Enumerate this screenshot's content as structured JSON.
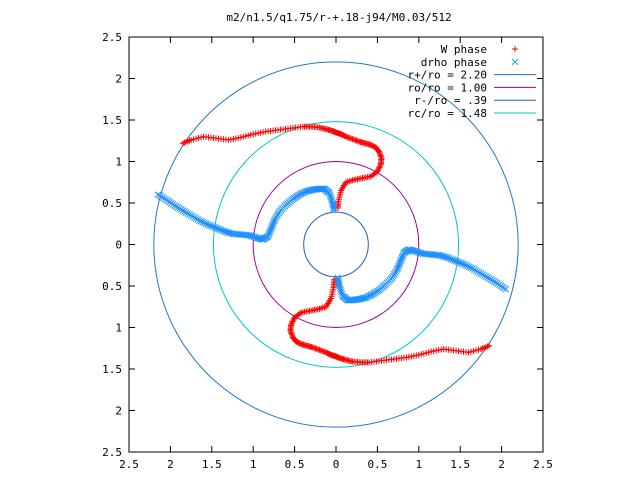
{
  "chart_data": {
    "type": "scatter",
    "title": "m2/n1.5/q1.75/r-+.18-j94/M0.03/512",
    "xlabel": "",
    "ylabel": "",
    "xlim": [
      -2.5,
      2.5
    ],
    "ylim": [
      -2.5,
      2.5
    ],
    "x_tick_labels": [
      "2.5",
      "2",
      "1.5",
      "1",
      "0.5",
      "0",
      "0.5",
      "1",
      "1.5",
      "2",
      "2.5"
    ],
    "y_tick_labels": [
      "2.5",
      "2",
      "1.5",
      "1",
      "0.5",
      "0",
      "0.5",
      "1",
      "1.5",
      "2",
      "2.5"
    ],
    "grid": false,
    "legend_position": "top-right",
    "series": [
      {
        "name": "W phase",
        "marker": "plus",
        "color": "#ff0000",
        "x": [
          -1.85,
          -1.75,
          -1.6,
          -1.45,
          -1.3,
          -1.15,
          -1.0,
          -0.85,
          -0.7,
          -0.55,
          -0.4,
          -0.3,
          -0.2,
          -0.12,
          -0.05,
          0.0,
          0.06,
          0.12,
          0.2,
          0.28,
          0.35,
          0.42,
          0.48,
          0.52,
          0.55,
          0.54,
          0.5,
          0.42,
          0.32,
          0.22,
          0.12,
          0.06,
          0.03,
          0.02,
          -0.02,
          -0.03,
          -0.06,
          -0.12,
          -0.22,
          -0.32,
          -0.42,
          -0.5,
          -0.54,
          -0.55,
          -0.52,
          -0.48,
          -0.42,
          -0.35,
          -0.28,
          -0.2,
          -0.12,
          -0.06,
          0.0,
          0.05,
          0.12,
          0.2,
          0.3,
          0.4,
          0.55,
          0.7,
          0.85,
          1.0,
          1.15,
          1.3,
          1.45,
          1.6,
          1.75,
          1.85
        ],
        "y": [
          1.22,
          1.26,
          1.3,
          1.28,
          1.26,
          1.29,
          1.33,
          1.36,
          1.38,
          1.4,
          1.42,
          1.42,
          1.41,
          1.39,
          1.37,
          1.35,
          1.33,
          1.3,
          1.27,
          1.24,
          1.22,
          1.2,
          1.17,
          1.12,
          1.04,
          0.96,
          0.88,
          0.82,
          0.8,
          0.78,
          0.75,
          0.65,
          0.52,
          0.42,
          -0.42,
          -0.52,
          -0.65,
          -0.75,
          -0.78,
          -0.8,
          -0.82,
          -0.88,
          -0.96,
          -1.04,
          -1.12,
          -1.17,
          -1.2,
          -1.22,
          -1.24,
          -1.27,
          -1.3,
          -1.33,
          -1.35,
          -1.37,
          -1.39,
          -1.41,
          -1.42,
          -1.42,
          -1.4,
          -1.38,
          -1.36,
          -1.33,
          -1.29,
          -1.26,
          -1.28,
          -1.3,
          -1.26,
          -1.22
        ]
      },
      {
        "name": "drho phase",
        "marker": "cross",
        "color": "#1e90ff",
        "x": [
          -2.15,
          -2.05,
          -1.95,
          -1.85,
          -1.75,
          -1.65,
          -1.55,
          -1.45,
          -1.35,
          -1.25,
          -1.15,
          -1.05,
          -0.95,
          -0.88,
          -0.82,
          -0.78,
          -0.74,
          -0.68,
          -0.6,
          -0.52,
          -0.44,
          -0.36,
          -0.28,
          -0.2,
          -0.14,
          -0.08,
          -0.04,
          -0.02,
          0.02,
          0.04,
          0.08,
          0.14,
          0.2,
          0.28,
          0.36,
          0.44,
          0.52,
          0.6,
          0.68,
          0.74,
          0.78,
          0.82,
          0.88,
          0.95,
          1.05,
          1.15,
          1.25,
          1.35,
          1.45,
          1.55,
          1.65,
          1.75,
          1.85,
          1.95,
          2.05
        ],
        "y": [
          0.6,
          0.54,
          0.47,
          0.41,
          0.35,
          0.29,
          0.24,
          0.2,
          0.16,
          0.13,
          0.12,
          0.11,
          0.08,
          0.06,
          0.1,
          0.2,
          0.3,
          0.4,
          0.48,
          0.55,
          0.6,
          0.64,
          0.66,
          0.67,
          0.67,
          0.62,
          0.5,
          0.4,
          -0.4,
          -0.5,
          -0.62,
          -0.67,
          -0.67,
          -0.66,
          -0.64,
          -0.6,
          -0.55,
          -0.48,
          -0.4,
          -0.3,
          -0.2,
          -0.1,
          -0.06,
          -0.08,
          -0.11,
          -0.12,
          -0.13,
          -0.16,
          -0.2,
          -0.24,
          -0.29,
          -0.35,
          -0.41,
          -0.47,
          -0.54
        ]
      },
      {
        "name": "r+/ro = 2.20",
        "type": "circle",
        "radius": 2.2,
        "color": "#1e78c8"
      },
      {
        "name": "ro/ro = 1.00",
        "type": "circle",
        "radius": 1.0,
        "color": "#a000a0"
      },
      {
        "name": "r-/ro = .39",
        "type": "circle",
        "radius": 0.39,
        "color": "#1e60c0"
      },
      {
        "name": "rc/ro = 1.48",
        "type": "circle",
        "radius": 1.48,
        "color": "#00c8c8"
      }
    ]
  }
}
